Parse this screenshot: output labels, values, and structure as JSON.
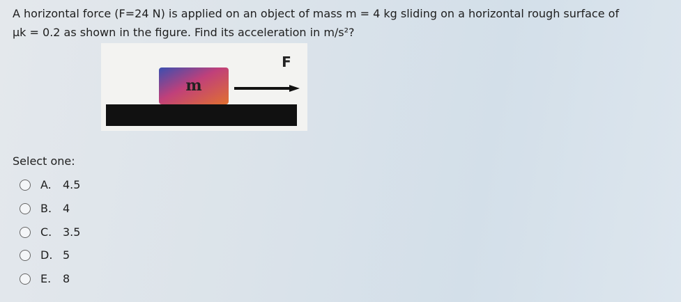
{
  "question": {
    "line1": "A horizontal force (F=24 N) is applied on an object of mass m = 4 kg sliding on a horizontal rough surface of",
    "line2": "μk = 0.2 as shown in the figure. Find its acceleration in m/s²?"
  },
  "figure": {
    "mass_label": "m",
    "force_label": "F"
  },
  "prompt": "Select one:",
  "options": [
    {
      "letter": "A.",
      "text": "4.5"
    },
    {
      "letter": "B.",
      "text": "4"
    },
    {
      "letter": "C.",
      "text": "3.5"
    },
    {
      "letter": "D.",
      "text": "5"
    },
    {
      "letter": "E.",
      "text": "8"
    }
  ]
}
